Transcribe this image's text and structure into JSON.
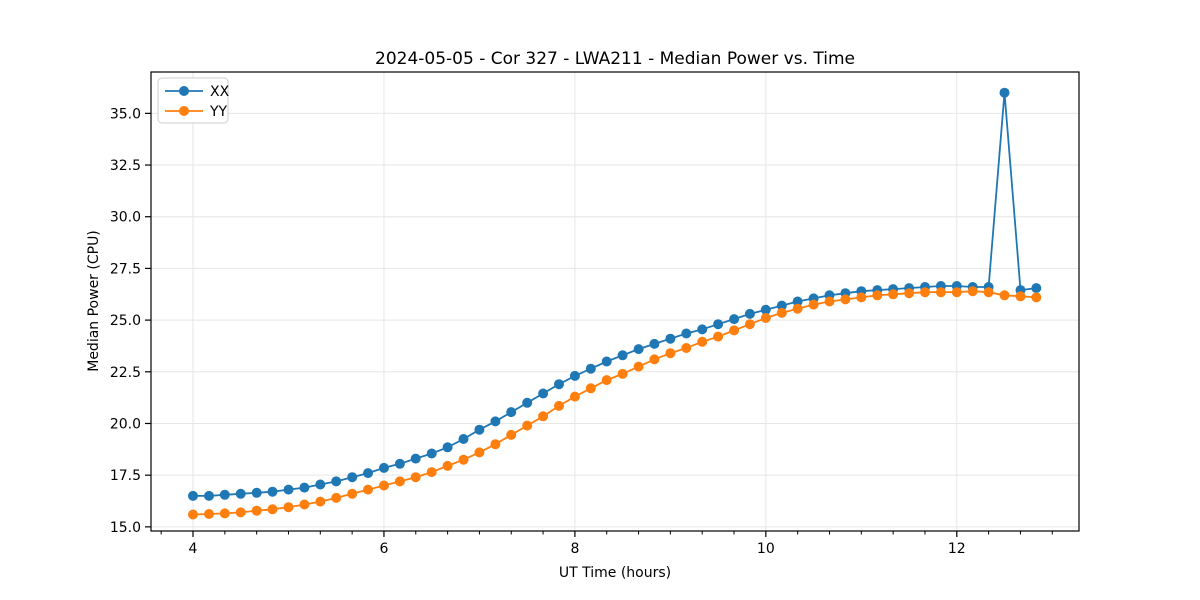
{
  "colors": {
    "series_xx": "#1f77b4",
    "series_yy": "#ff7f0e",
    "grid": "#e6e6e6",
    "spine": "#000000",
    "legend_border": "#cccccc",
    "background": "#ffffff"
  },
  "chart_data": {
    "type": "line",
    "title": "2024-05-05 - Cor 327 - LWA211 - Median Power vs. Time",
    "xlabel": "UT Time (hours)",
    "ylabel": "Median Power (CPU)",
    "grid": true,
    "legend_position": "upper-left",
    "xlim": [
      3.56,
      13.28
    ],
    "ylim": [
      14.8,
      37.0
    ],
    "x_major_ticks": [
      4,
      6,
      8,
      10,
      12
    ],
    "x_tick_labels": [
      "4",
      "6",
      "8",
      "10",
      "12"
    ],
    "x_minor_step": 0.3333333,
    "y_major_ticks": [
      15.0,
      17.5,
      20.0,
      22.5,
      25.0,
      27.5,
      30.0,
      32.5,
      35.0
    ],
    "y_tick_labels": [
      "15.0",
      "17.5",
      "20.0",
      "22.5",
      "25.0",
      "27.5",
      "30.0",
      "32.5",
      "35.0"
    ],
    "x": [
      4.0,
      4.167,
      4.333,
      4.5,
      4.667,
      4.833,
      5.0,
      5.167,
      5.333,
      5.5,
      5.667,
      5.833,
      6.0,
      6.167,
      6.333,
      6.5,
      6.667,
      6.833,
      7.0,
      7.167,
      7.333,
      7.5,
      7.667,
      7.833,
      8.0,
      8.167,
      8.333,
      8.5,
      8.667,
      8.833,
      9.0,
      9.167,
      9.333,
      9.5,
      9.667,
      9.833,
      10.0,
      10.167,
      10.333,
      10.5,
      10.667,
      10.833,
      11.0,
      11.167,
      11.333,
      11.5,
      11.667,
      11.833,
      12.0,
      12.167,
      12.333,
      12.5,
      12.667,
      12.833
    ],
    "series": [
      {
        "name": "XX",
        "color": "#1f77b4",
        "values": [
          16.5,
          16.5,
          16.55,
          16.6,
          16.65,
          16.7,
          16.8,
          16.9,
          17.05,
          17.2,
          17.4,
          17.6,
          17.85,
          18.05,
          18.3,
          18.55,
          18.85,
          19.25,
          19.7,
          20.1,
          20.55,
          21.0,
          21.45,
          21.9,
          22.3,
          22.65,
          23.0,
          23.3,
          23.6,
          23.85,
          24.1,
          24.35,
          24.55,
          24.8,
          25.05,
          25.3,
          25.5,
          25.7,
          25.9,
          26.05,
          26.2,
          26.3,
          26.4,
          26.45,
          26.5,
          26.55,
          26.6,
          26.65,
          26.65,
          26.6,
          26.6,
          36.0,
          26.45,
          26.55
        ]
      },
      {
        "name": "YY",
        "color": "#ff7f0e",
        "values": [
          15.6,
          15.62,
          15.65,
          15.7,
          15.78,
          15.85,
          15.95,
          16.08,
          16.22,
          16.4,
          16.6,
          16.8,
          17.0,
          17.2,
          17.4,
          17.65,
          17.95,
          18.25,
          18.6,
          19.0,
          19.45,
          19.9,
          20.35,
          20.85,
          21.3,
          21.7,
          22.1,
          22.4,
          22.75,
          23.1,
          23.4,
          23.65,
          23.95,
          24.2,
          24.5,
          24.8,
          25.1,
          25.35,
          25.55,
          25.75,
          25.9,
          26.0,
          26.1,
          26.2,
          26.25,
          26.3,
          26.35,
          26.35,
          26.35,
          26.4,
          26.35,
          26.2,
          26.15,
          26.1
        ]
      }
    ]
  }
}
